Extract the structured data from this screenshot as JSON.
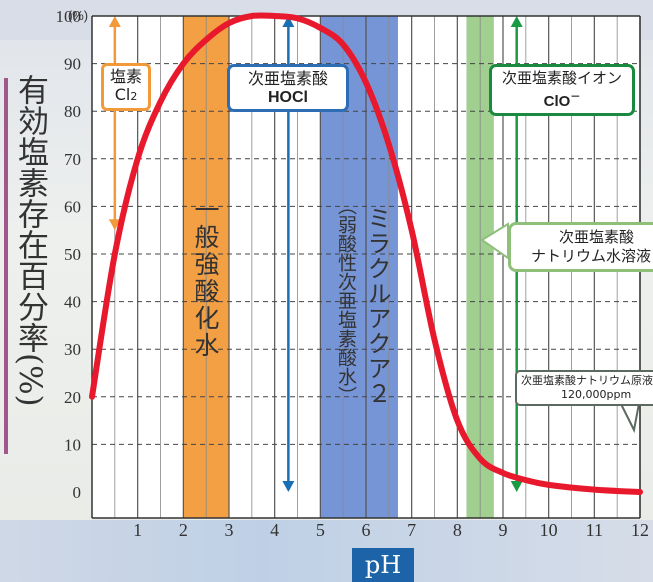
{
  "chart_data": {
    "type": "line",
    "title": "",
    "xlabel": "pH",
    "ylabel": "有効塩素存在百分率(%)",
    "y_unit": "(%)",
    "xlim": [
      0,
      12
    ],
    "ylim": [
      0,
      100
    ],
    "x_ticks": [
      1,
      2,
      3,
      4,
      5,
      6,
      7,
      8,
      9,
      10,
      11,
      12
    ],
    "y_ticks": [
      0,
      10,
      20,
      30,
      40,
      50,
      60,
      70,
      80,
      90,
      100
    ],
    "grid": true,
    "series": [
      {
        "name": "次亜塩素酸 HOCl",
        "color": "#e8192c",
        "points": [
          [
            0,
            20
          ],
          [
            0.5,
            50
          ],
          [
            1,
            70
          ],
          [
            1.5,
            82
          ],
          [
            2,
            90
          ],
          [
            2.5,
            95
          ],
          [
            3,
            98.5
          ],
          [
            3.5,
            100
          ],
          [
            4,
            100
          ],
          [
            4.5,
            99.5
          ],
          [
            5,
            97.5
          ],
          [
            5.5,
            94
          ],
          [
            6,
            86
          ],
          [
            6.5,
            73
          ],
          [
            7,
            55
          ],
          [
            7.5,
            32
          ],
          [
            8,
            15
          ],
          [
            8.5,
            7
          ],
          [
            9,
            4
          ],
          [
            9.5,
            2.5
          ],
          [
            10,
            1.5
          ],
          [
            11,
            0.5
          ],
          [
            12,
            0
          ]
        ]
      }
    ],
    "bands": [
      {
        "label": "一般強酸化水",
        "x_range": [
          2,
          3
        ],
        "color": "#f29a3a"
      },
      {
        "label": "ミラクルアクア２",
        "sublabel": "（弱酸性次亜塩素酸水）",
        "x_range": [
          5,
          6.7
        ],
        "color": "#6f8fd4"
      },
      {
        "label": "",
        "x_range": [
          8.2,
          8.8
        ],
        "color": "#9ccc8a"
      }
    ],
    "ranges": [
      {
        "x": 0.5,
        "y_range": [
          55,
          100
        ],
        "color": "#f29a3a"
      },
      {
        "x": 4.3,
        "y_range": [
          0,
          100
        ],
        "color": "#1a6fb3"
      },
      {
        "x": 9.3,
        "y_range": [
          0,
          100
        ],
        "color": "#1a9a45"
      }
    ]
  },
  "species": {
    "cl2_line1": "塩素",
    "cl2_line2": "Cl",
    "cl2_sub": "2",
    "hocl_line1": "次亜塩素酸",
    "hocl_line2": "HOCl",
    "clo_line1": "次亜塩素酸イオン",
    "clo_line2": "ClO",
    "clo_sup": "－"
  },
  "callouts": {
    "naocl_solution_line1": "次亜塩素酸",
    "naocl_solution_line2": "ナトリウム水溶液",
    "naocl_stock_line1": "次亜塩素酸ナトリウム原液",
    "naocl_stock_line2": "120,000ppm"
  },
  "colors": {
    "curve": "#e8192c",
    "acid_band": "#f29a3a",
    "miracle_band": "#6f8fd4",
    "naocl_band": "#9ccc8a",
    "hocl_blue": "#1a6fb3",
    "clo_green": "#1a9a45",
    "ylabel_bar": "#a0578a",
    "ph_badge": "#1d63a8"
  }
}
